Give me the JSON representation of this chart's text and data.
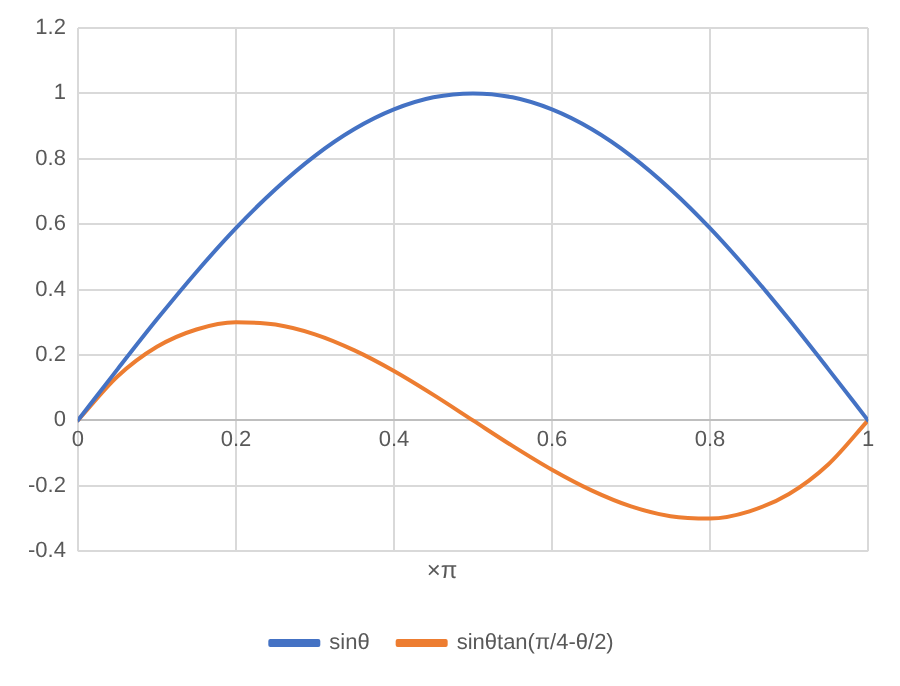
{
  "chart_data": {
    "type": "line",
    "xlabel": "×π",
    "x": [
      0,
      0.05,
      0.1,
      0.15,
      0.2,
      0.25,
      0.3,
      0.35,
      0.4,
      0.45,
      0.5,
      0.55,
      0.6,
      0.65,
      0.7,
      0.75,
      0.8,
      0.85,
      0.9,
      0.95,
      1
    ],
    "series": [
      {
        "name": "sinθ",
        "color": "#4472c4",
        "values": [
          0,
          0.156,
          0.309,
          0.454,
          0.588,
          0.707,
          0.809,
          0.891,
          0.951,
          0.988,
          1,
          0.988,
          0.951,
          0.891,
          0.809,
          0.707,
          0.588,
          0.454,
          0.309,
          0.156,
          0
        ]
      },
      {
        "name": "sinθtan(π/4-θ/2)",
        "color": "#ed7d31",
        "values": [
          0,
          0.134,
          0.225,
          0.278,
          0.3,
          0.293,
          0.263,
          0.214,
          0.151,
          0.078,
          0,
          -0.078,
          -0.151,
          -0.214,
          -0.263,
          -0.293,
          -0.3,
          -0.278,
          -0.225,
          -0.134,
          0
        ]
      }
    ],
    "xlim": [
      0,
      1
    ],
    "xticks": [
      0,
      0.2,
      0.4,
      0.6,
      0.8,
      1
    ],
    "ylim": [
      -0.4,
      1.2
    ],
    "yticks": [
      -0.4,
      -0.2,
      0,
      0.2,
      0.4,
      0.6,
      0.8,
      1,
      1.2
    ],
    "grid": true,
    "legend": "bottom",
    "marker": "none",
    "line_style": "solid"
  }
}
